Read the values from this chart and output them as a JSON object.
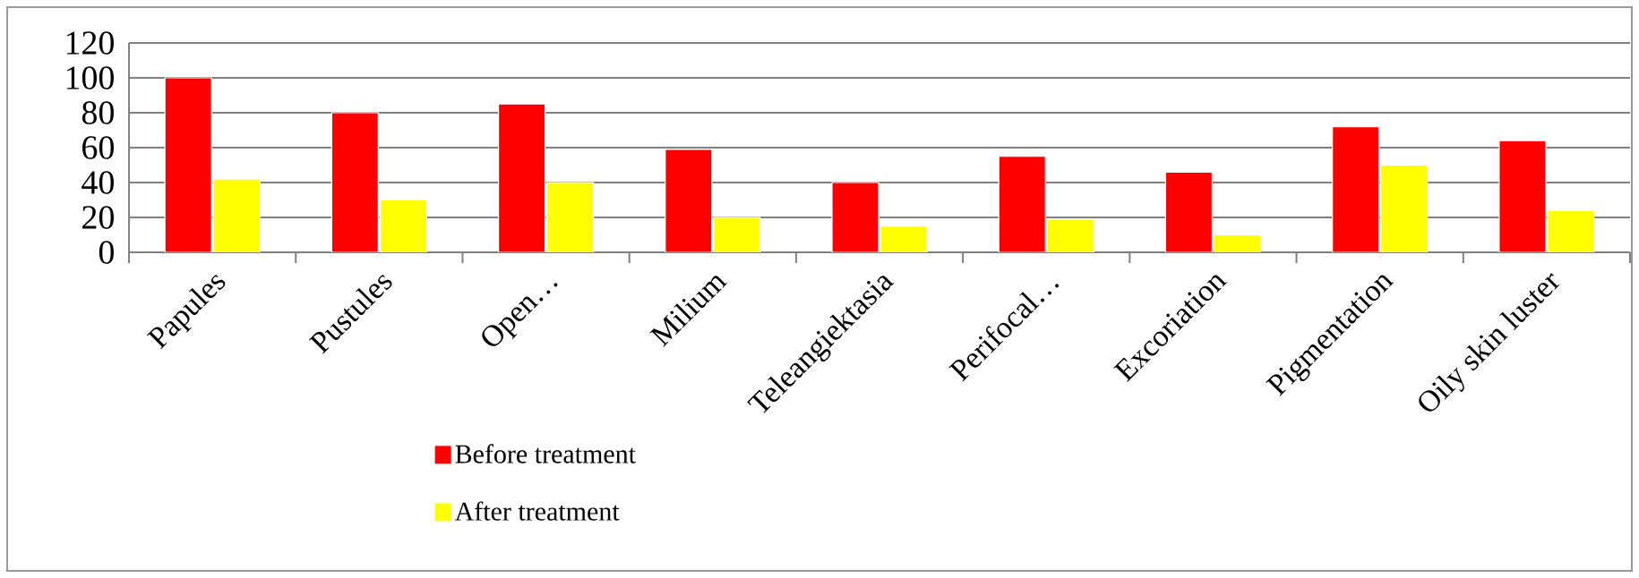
{
  "chart_data": {
    "type": "bar",
    "categories": [
      "Papules",
      "Pustules",
      "Open…",
      "Milium",
      "Teleangiektasia",
      "Perifocal…",
      "Excoriation",
      "Pigmentation",
      "Oily skin luster"
    ],
    "series": [
      {
        "name": "Before treatment",
        "color": "#ff0000",
        "values": [
          100,
          80,
          85,
          59,
          40,
          55,
          46,
          72,
          64
        ]
      },
      {
        "name": "After treatment",
        "color": "#ffff00",
        "values": [
          42,
          30,
          40,
          20,
          15,
          19,
          10,
          50,
          24
        ]
      }
    ],
    "ylim": [
      0,
      120
    ],
    "yticks": [
      0,
      20,
      40,
      60,
      80,
      100,
      120
    ],
    "grid": "y",
    "legend": "bottom"
  }
}
